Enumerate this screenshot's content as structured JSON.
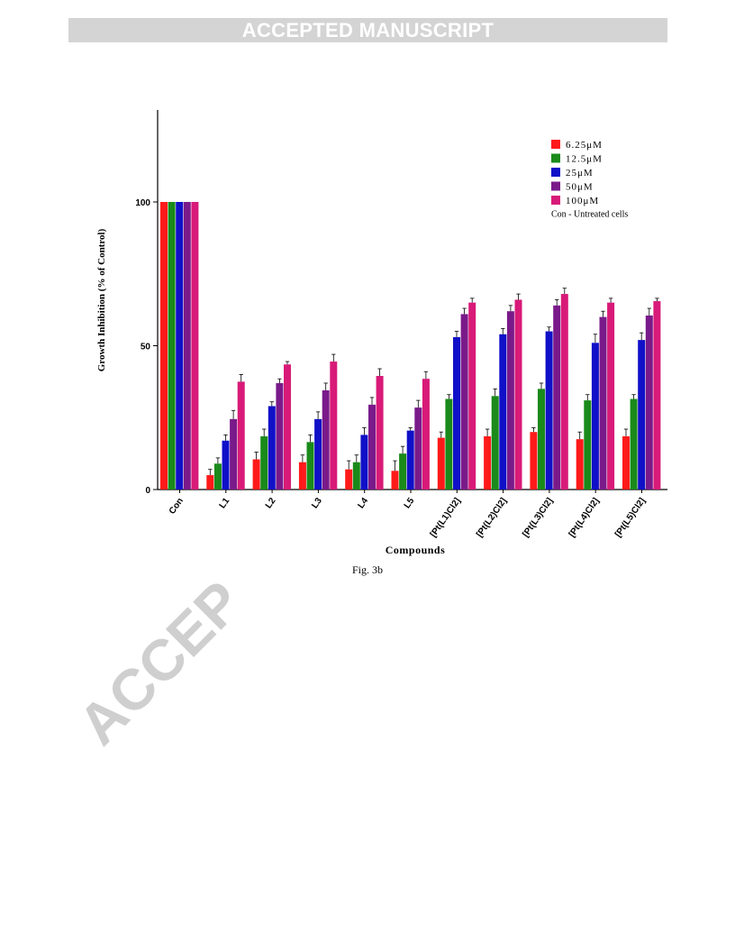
{
  "banner": {
    "text": "ACCEPTED MANUSCRIPT"
  },
  "watermark": {
    "text": "ACCEP",
    "color": "#cfcfcf"
  },
  "caption": {
    "text": "Fig. 3b"
  },
  "chart_data": {
    "type": "bar",
    "title": "",
    "xlabel": "Compounds",
    "ylabel": "Growth Inhibition (% of Control)",
    "ylim": [
      0,
      130
    ],
    "yticks": [
      0,
      50,
      100
    ],
    "grid": false,
    "legend_position": "top-right",
    "legend_note": "Con - Untreated cells",
    "categories": [
      "Con",
      "L1",
      "L2",
      "L3",
      "L4",
      "L5",
      "[Pt(L1)Cl2]",
      "[Pt(L2)Cl2]",
      "[Pt(L3)Cl2]",
      "[Pt(L4)Cl2]",
      "[Pt(L5)Cl2]"
    ],
    "series": [
      {
        "name": "6.25μM",
        "color": "#ff1a1a",
        "values": [
          100,
          5,
          10.5,
          9.5,
          7,
          6.5,
          18,
          18.5,
          20,
          17.5,
          18.5
        ],
        "errors": [
          0,
          2,
          2.5,
          2.5,
          3,
          3.5,
          2,
          2.5,
          1.5,
          2.5,
          2.5
        ]
      },
      {
        "name": "12.5μM",
        "color": "#1a8a1a",
        "values": [
          100,
          9,
          18.5,
          16.5,
          9.5,
          12.5,
          31.5,
          32.5,
          35,
          31,
          31.5
        ],
        "errors": [
          0,
          2,
          2.5,
          2.5,
          2.5,
          2.5,
          1.5,
          2.5,
          2,
          2,
          1.5
        ]
      },
      {
        "name": "25μM",
        "color": "#1010c8",
        "values": [
          100,
          17,
          29,
          24.5,
          19,
          20.5,
          53,
          54,
          55,
          51,
          52
        ],
        "errors": [
          0,
          2,
          1.5,
          2.5,
          2.5,
          1,
          2,
          2,
          1.5,
          3,
          2.5
        ]
      },
      {
        "name": "50μM",
        "color": "#7a1a8a",
        "values": [
          100,
          24.5,
          37,
          34.5,
          29.5,
          28.5,
          61,
          62,
          64,
          60,
          60.5
        ],
        "errors": [
          0,
          3,
          1.5,
          2.5,
          2.5,
          2.5,
          2,
          2,
          2,
          2,
          2.5
        ]
      },
      {
        "name": "100μM",
        "color": "#d81a78",
        "values": [
          100,
          37.5,
          43.5,
          44.5,
          39.5,
          38.5,
          65,
          66,
          68,
          65,
          65.5
        ],
        "errors": [
          0,
          2.5,
          1,
          2.5,
          2.5,
          2.5,
          1.5,
          2,
          2,
          1.5,
          1
        ]
      }
    ]
  }
}
